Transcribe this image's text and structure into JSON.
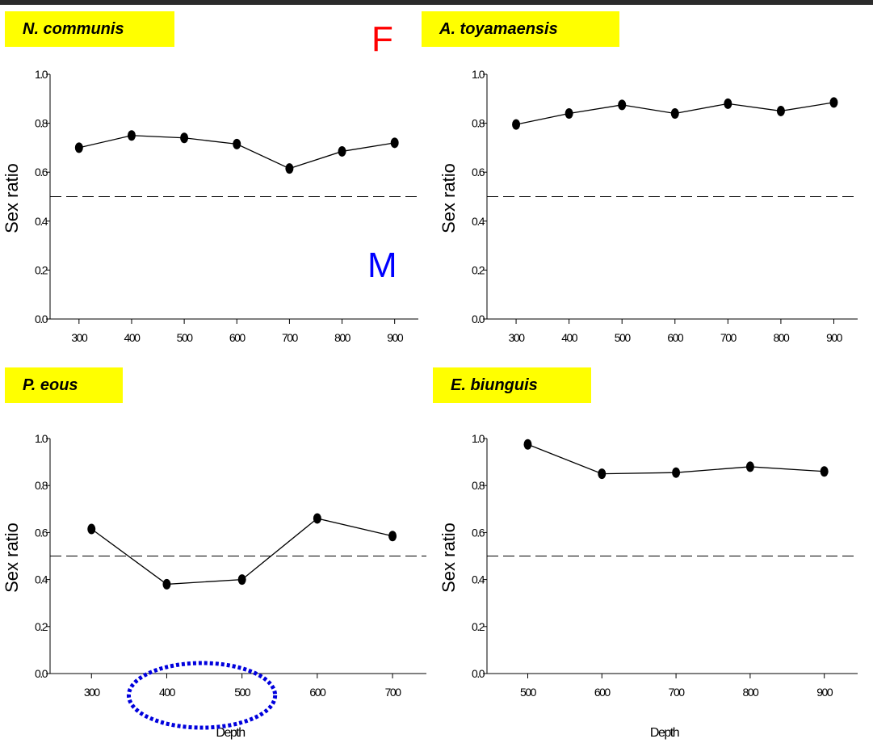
{
  "colors": {
    "label_bg": "#ffff00",
    "female": "#ff0000",
    "male": "#0000ff",
    "highlight": "#0000dd",
    "topbar": "#2b2b2b"
  },
  "annotations": {
    "female": "F",
    "male": "M"
  },
  "chart_data": [
    {
      "type": "line",
      "title": "N. communis",
      "xlabel": "",
      "ylabel": "Sex ratio",
      "x": [
        300,
        400,
        500,
        600,
        700,
        800,
        900
      ],
      "y": [
        0.7,
        0.75,
        0.74,
        0.715,
        0.615,
        0.685,
        0.72
      ],
      "xlim": [
        245,
        945
      ],
      "ylim": [
        0.0,
        1.0
      ],
      "yticks": [
        "0.0",
        "0.2",
        "0.4",
        "0.6",
        "0.8",
        "1.0"
      ],
      "xticks": [
        "300",
        "400",
        "500",
        "600",
        "700",
        "800",
        "900"
      ],
      "reference_line": 0.5,
      "grid": false
    },
    {
      "type": "line",
      "title": "A. toyamaensis",
      "xlabel": "",
      "ylabel": "Sex ratio",
      "x": [
        300,
        400,
        500,
        600,
        700,
        800,
        900
      ],
      "y": [
        0.795,
        0.84,
        0.875,
        0.84,
        0.88,
        0.85,
        0.885
      ],
      "xlim": [
        245,
        945
      ],
      "ylim": [
        0.0,
        1.0
      ],
      "yticks": [
        "0.0",
        "0.2",
        "0.4",
        "0.6",
        "0.8",
        "1.0"
      ],
      "xticks": [
        "300",
        "400",
        "500",
        "600",
        "700",
        "800",
        "900"
      ],
      "reference_line": 0.5,
      "grid": false
    },
    {
      "type": "line",
      "title": "P. eous",
      "xlabel": "Depth",
      "ylabel": "Sex ratio",
      "x": [
        300,
        400,
        500,
        600,
        700
      ],
      "y": [
        0.615,
        0.38,
        0.4,
        0.66,
        0.585
      ],
      "xlim": [
        245,
        745
      ],
      "ylim": [
        0.0,
        1.0
      ],
      "yticks": [
        "0.0",
        "0.2",
        "0.4",
        "0.6",
        "0.8",
        "1.0"
      ],
      "xticks": [
        "300",
        "400",
        "500",
        "600",
        "700"
      ],
      "reference_line": 0.5,
      "highlight_x_range": [
        400,
        500
      ],
      "grid": false
    },
    {
      "type": "line",
      "title": "E. biunguis",
      "xlabel": "Depth",
      "ylabel": "Sex ratio",
      "x": [
        500,
        600,
        700,
        800,
        900
      ],
      "y": [
        0.975,
        0.85,
        0.855,
        0.88,
        0.86
      ],
      "xlim": [
        445,
        945
      ],
      "ylim": [
        0.0,
        1.0
      ],
      "yticks": [
        "0.0",
        "0.2",
        "0.4",
        "0.6",
        "0.8",
        "1.0"
      ],
      "xticks": [
        "500",
        "600",
        "700",
        "800",
        "900"
      ],
      "reference_line": 0.5,
      "grid": false
    }
  ]
}
